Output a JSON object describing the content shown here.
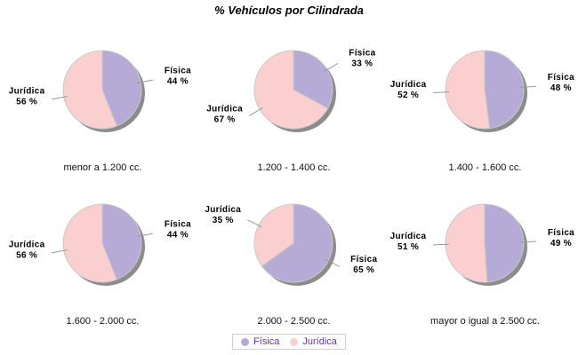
{
  "title": "% Vehículos por Cilindrada",
  "legend": {
    "items": [
      {
        "label": "Física",
        "color": "#b6abd6"
      },
      {
        "label": "Jurídica",
        "color": "#fbcfd0"
      }
    ]
  },
  "chart_data": [
    {
      "type": "pie",
      "title": "menor a 1.200 cc.",
      "categories": [
        "Física",
        "Jurídica"
      ],
      "values": [
        44,
        56
      ],
      "unit": "%",
      "start_angle": "12-oclock",
      "direction": "clockwise"
    },
    {
      "type": "pie",
      "title": "1.200 - 1.400 cc.",
      "categories": [
        "Física",
        "Jurídica"
      ],
      "values": [
        33,
        67
      ],
      "unit": "%",
      "start_angle": "12-oclock",
      "direction": "clockwise"
    },
    {
      "type": "pie",
      "title": "1.400 - 1.600 cc.",
      "categories": [
        "Física",
        "Jurídica"
      ],
      "values": [
        48,
        52
      ],
      "unit": "%",
      "start_angle": "12-oclock",
      "direction": "clockwise"
    },
    {
      "type": "pie",
      "title": "1.600 - 2.000 cc.",
      "categories": [
        "Física",
        "Jurídica"
      ],
      "values": [
        44,
        56
      ],
      "unit": "%",
      "start_angle": "12-oclock",
      "direction": "clockwise"
    },
    {
      "type": "pie",
      "title": "2.000 - 2.500 cc.",
      "categories": [
        "Física",
        "Jurídica"
      ],
      "values": [
        65,
        35
      ],
      "unit": "%",
      "start_angle": "12-oclock",
      "direction": "clockwise"
    },
    {
      "type": "pie",
      "title": "mayor o igual a 2.500 cc.",
      "categories": [
        "Física",
        "Jurídica"
      ],
      "values": [
        49,
        51
      ],
      "unit": "%",
      "start_angle": "12-oclock",
      "direction": "clockwise"
    }
  ],
  "styles": {
    "slice_colors": [
      "#b6abd6",
      "#fbcfd0"
    ],
    "slice_stroke": "#c9c9c9",
    "shadow_color": "#8c8c8c",
    "leader_line_color": "#999999",
    "label_text_color": "#000000",
    "legend_text_color": "#663399",
    "legend_border_color": "#cccccc",
    "background": "#ffffff"
  }
}
